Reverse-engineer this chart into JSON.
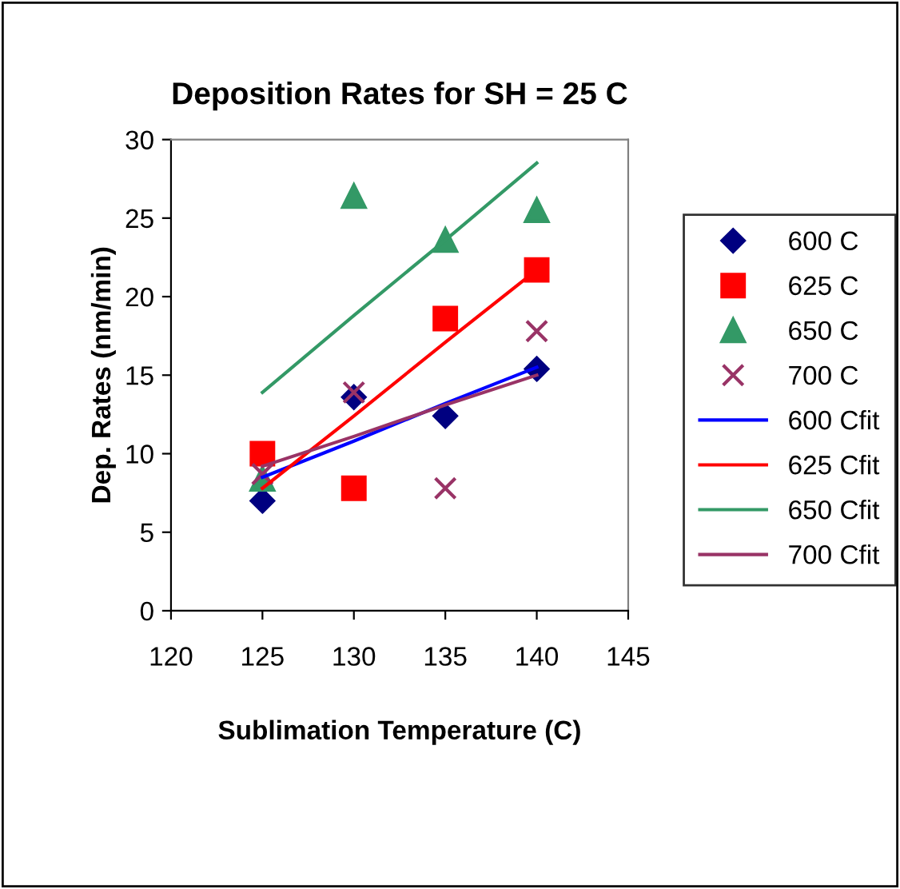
{
  "chart_data": {
    "type": "scatter",
    "title": "Deposition Rates for SH = 25 C",
    "xlabel": "Sublimation Temperature (C)",
    "ylabel": "Dep. Rates (nm/min)",
    "x": [
      125,
      130,
      135,
      140
    ],
    "xlim": [
      120,
      145
    ],
    "xticks": [
      120,
      125,
      130,
      135,
      140,
      145
    ],
    "ylim": [
      0,
      30
    ],
    "yticks": [
      0,
      5,
      10,
      15,
      20,
      25,
      30
    ],
    "grid": false,
    "legend": "right",
    "series": [
      {
        "name": "600 C",
        "marker": "diamond",
        "color": "#000080",
        "values": [
          7.0,
          13.6,
          12.4,
          15.4
        ]
      },
      {
        "name": "625 C",
        "marker": "square",
        "color": "#ff0000",
        "values": [
          10.0,
          7.8,
          18.6,
          21.7
        ]
      },
      {
        "name": "650 C",
        "marker": "triangle",
        "color": "#339966",
        "values": [
          8.4,
          26.4,
          23.6,
          25.5
        ]
      },
      {
        "name": "700 C",
        "marker": "cross",
        "color": "#993366",
        "values": [
          8.7,
          13.9,
          7.8,
          17.8
        ]
      },
      {
        "name": "600 Cfit",
        "type": "line",
        "marker": "none",
        "color": "#0000ff",
        "values": [
          8.5,
          10.8,
          13.2,
          15.5
        ]
      },
      {
        "name": "625 Cfit",
        "type": "line",
        "marker": "none",
        "color": "#ff0000",
        "values": [
          7.8,
          12.4,
          17.1,
          21.7
        ]
      },
      {
        "name": "650 Cfit",
        "type": "line",
        "marker": "none",
        "color": "#339966",
        "values": [
          13.9,
          18.8,
          23.6,
          28.5
        ]
      },
      {
        "name": "700 Cfit",
        "type": "line",
        "marker": "none",
        "color": "#993366",
        "values": [
          9.2,
          11.1,
          13.1,
          15.0
        ]
      }
    ]
  }
}
